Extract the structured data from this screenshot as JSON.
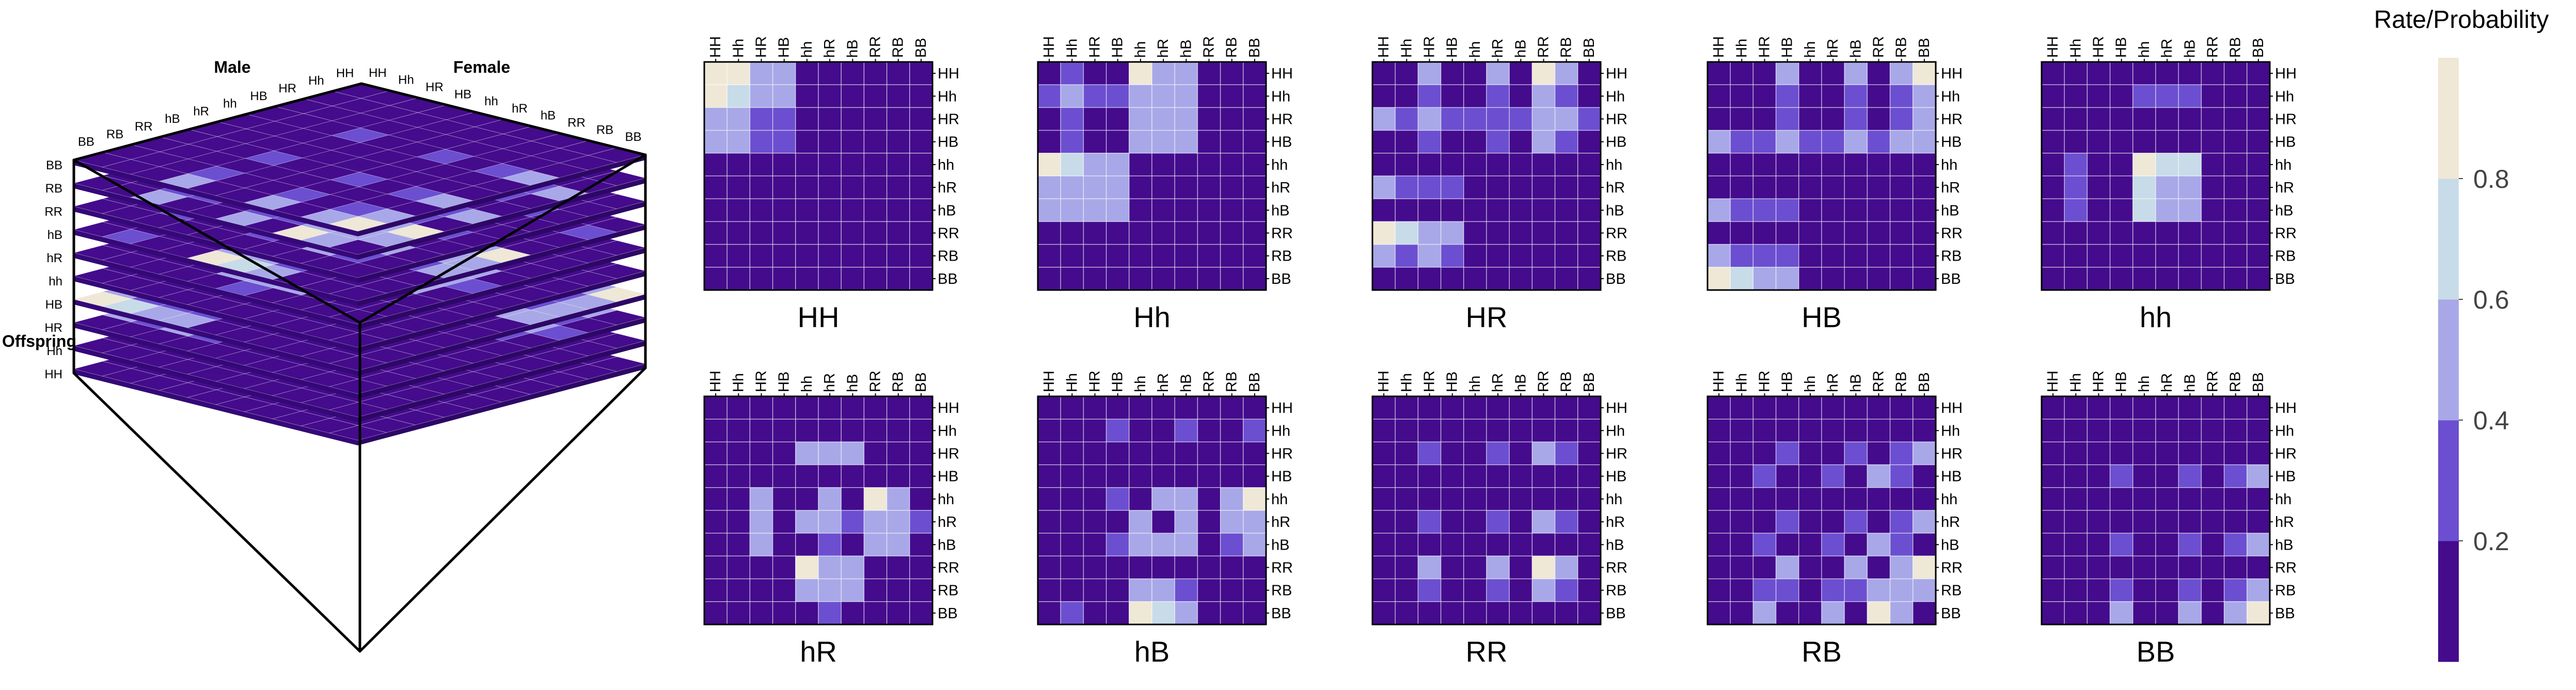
{
  "chart_data": {
    "type": "heatmap",
    "genotypes": [
      "HH",
      "Hh",
      "HR",
      "HB",
      "hh",
      "hR",
      "hB",
      "RR",
      "RB",
      "BB"
    ],
    "palette": [
      "#440b8c",
      "#6b4fd0",
      "#a8a8e8",
      "#c8dbe8",
      "#efe8d6"
    ],
    "grid_color": "#ffffff",
    "colorbar": {
      "title": "Rate/Probability",
      "ticks": [
        0.2,
        0.4,
        0.6,
        0.8
      ],
      "range": [
        0,
        1
      ]
    },
    "cube": {
      "male_label": "Male",
      "female_label": "Female",
      "offspring_label": "Offspring"
    },
    "panels": [
      {
        "title": "HH",
        "values": [
          [
            1,
            1,
            0.5,
            0.5,
            0,
            0,
            0,
            0,
            0,
            0
          ],
          [
            1,
            0.75,
            0.5,
            0.5,
            0,
            0,
            0,
            0,
            0,
            0
          ],
          [
            0.5,
            0.5,
            0.25,
            0.25,
            0,
            0,
            0,
            0,
            0,
            0
          ],
          [
            0.5,
            0.5,
            0.25,
            0.25,
            0,
            0,
            0,
            0,
            0,
            0
          ],
          [
            0,
            0,
            0,
            0,
            0,
            0,
            0,
            0,
            0,
            0
          ],
          [
            0,
            0,
            0,
            0,
            0,
            0,
            0,
            0,
            0,
            0
          ],
          [
            0,
            0,
            0,
            0,
            0,
            0,
            0,
            0,
            0,
            0
          ],
          [
            0,
            0,
            0,
            0,
            0,
            0,
            0,
            0,
            0,
            0
          ],
          [
            0,
            0,
            0,
            0,
            0,
            0,
            0,
            0,
            0,
            0
          ],
          [
            0,
            0,
            0,
            0,
            0,
            0,
            0,
            0,
            0,
            0
          ]
        ]
      },
      {
        "title": "Hh",
        "values": [
          [
            0,
            0.25,
            0.1,
            0.1,
            1,
            0.5,
            0.5,
            0,
            0,
            0
          ],
          [
            0.25,
            0.5,
            0.25,
            0.25,
            0.5,
            0.5,
            0.5,
            0,
            0,
            0
          ],
          [
            0.1,
            0.25,
            0.1,
            0.1,
            0.5,
            0.45,
            0.45,
            0,
            0,
            0
          ],
          [
            0.1,
            0.25,
            0.1,
            0.1,
            0.5,
            0.45,
            0.45,
            0,
            0,
            0
          ],
          [
            1,
            0.75,
            0.5,
            0.5,
            0,
            0,
            0,
            0,
            0,
            0
          ],
          [
            0.5,
            0.5,
            0.45,
            0.45,
            0,
            0,
            0,
            0,
            0,
            0
          ],
          [
            0.5,
            0.5,
            0.45,
            0.45,
            0,
            0,
            0,
            0,
            0,
            0
          ],
          [
            0,
            0,
            0,
            0,
            0,
            0,
            0,
            0,
            0,
            0
          ],
          [
            0,
            0,
            0,
            0,
            0,
            0,
            0,
            0,
            0,
            0
          ],
          [
            0,
            0,
            0,
            0,
            0,
            0,
            0,
            0,
            0,
            0
          ]
        ]
      },
      {
        "title": "HR",
        "values": [
          [
            0,
            0,
            0.5,
            0,
            0,
            0.5,
            0,
            1,
            0.5,
            0
          ],
          [
            0,
            0,
            0.25,
            0,
            0,
            0.25,
            0,
            0.5,
            0.25,
            0
          ],
          [
            0.5,
            0.25,
            0.5,
            0.25,
            0.25,
            0.25,
            0.25,
            0.5,
            0.5,
            0.25
          ],
          [
            0,
            0,
            0.25,
            0,
            0,
            0.25,
            0,
            0.5,
            0.25,
            0
          ],
          [
            0,
            0,
            0,
            0,
            0,
            0,
            0,
            0,
            0,
            0
          ],
          [
            0.5,
            0.25,
            0.25,
            0.25,
            0,
            0,
            0,
            0,
            0,
            0
          ],
          [
            0,
            0,
            0,
            0,
            0,
            0,
            0,
            0,
            0,
            0
          ],
          [
            1,
            0.6,
            0.5,
            0.5,
            0,
            0,
            0,
            0,
            0,
            0
          ],
          [
            0.5,
            0.25,
            0.5,
            0.25,
            0,
            0,
            0,
            0,
            0,
            0
          ],
          [
            0,
            0,
            0,
            0,
            0,
            0,
            0,
            0,
            0,
            0
          ]
        ]
      },
      {
        "title": "HB",
        "values": [
          [
            0,
            0,
            0,
            0.5,
            0,
            0,
            0.5,
            0,
            0.5,
            1
          ],
          [
            0,
            0,
            0,
            0.25,
            0,
            0,
            0.25,
            0,
            0.25,
            0.5
          ],
          [
            0,
            0,
            0,
            0.25,
            0,
            0,
            0.25,
            0,
            0.25,
            0.5
          ],
          [
            0.5,
            0.25,
            0.25,
            0.5,
            0.25,
            0.25,
            0.5,
            0.25,
            0.5,
            0.5
          ],
          [
            0,
            0,
            0,
            0,
            0,
            0,
            0,
            0,
            0,
            0
          ],
          [
            0,
            0,
            0,
            0,
            0,
            0,
            0,
            0,
            0,
            0
          ],
          [
            0.5,
            0.25,
            0.25,
            0.25,
            0,
            0,
            0,
            0,
            0,
            0
          ],
          [
            0,
            0,
            0,
            0,
            0,
            0,
            0,
            0,
            0,
            0
          ],
          [
            0.5,
            0.25,
            0.25,
            0.25,
            0,
            0,
            0,
            0,
            0,
            0
          ],
          [
            1,
            0.6,
            0.5,
            0.5,
            0,
            0,
            0,
            0,
            0,
            0
          ]
        ]
      },
      {
        "title": "hh",
        "values": [
          [
            0,
            0,
            0,
            0,
            0,
            0,
            0,
            0,
            0,
            0
          ],
          [
            0,
            0.1,
            0,
            0,
            0.25,
            0.25,
            0.25,
            0,
            0,
            0
          ],
          [
            0,
            0,
            0,
            0,
            0,
            0,
            0,
            0,
            0,
            0
          ],
          [
            0,
            0,
            0,
            0,
            0,
            0,
            0,
            0,
            0,
            0
          ],
          [
            0,
            0.25,
            0,
            0,
            1,
            0.6,
            0.6,
            0,
            0,
            0
          ],
          [
            0,
            0.25,
            0,
            0,
            0.6,
            0.5,
            0.5,
            0,
            0,
            0
          ],
          [
            0,
            0.25,
            0,
            0,
            0.6,
            0.5,
            0.5,
            0,
            0,
            0
          ],
          [
            0,
            0,
            0,
            0,
            0,
            0,
            0,
            0,
            0,
            0
          ],
          [
            0,
            0,
            0,
            0,
            0,
            0,
            0,
            0,
            0,
            0
          ],
          [
            0,
            0,
            0,
            0,
            0,
            0,
            0,
            0,
            0,
            0
          ]
        ]
      },
      {
        "title": "hR",
        "values": [
          [
            0,
            0,
            0,
            0,
            0,
            0,
            0,
            0,
            0,
            0
          ],
          [
            0,
            0,
            0,
            0,
            0,
            0,
            0,
            0,
            0,
            0
          ],
          [
            0,
            0,
            0,
            0,
            0.5,
            0.4,
            0.4,
            0,
            0,
            0
          ],
          [
            0,
            0,
            0,
            0,
            0,
            0,
            0,
            0,
            0,
            0
          ],
          [
            0,
            0,
            0.5,
            0,
            0,
            0.5,
            0,
            1,
            0.5,
            0
          ],
          [
            0,
            0,
            0.4,
            0,
            0.5,
            0.5,
            0.25,
            0.5,
            0.5,
            0.25
          ],
          [
            0,
            0,
            0.4,
            0,
            0,
            0.25,
            0,
            0.5,
            0.5,
            0
          ],
          [
            0,
            0,
            0,
            0,
            1,
            0.5,
            0.5,
            0,
            0,
            0
          ],
          [
            0,
            0,
            0,
            0,
            0.5,
            0.5,
            0.5,
            0,
            0,
            0
          ],
          [
            0,
            0,
            0,
            0,
            0,
            0.25,
            0,
            0,
            0,
            0
          ]
        ]
      },
      {
        "title": "hB",
        "values": [
          [
            0,
            0,
            0,
            0,
            0,
            0,
            0,
            0,
            0,
            0
          ],
          [
            0,
            0,
            0,
            0.25,
            0,
            0,
            0.25,
            0,
            0,
            0.25
          ],
          [
            0,
            0,
            0,
            0,
            0,
            0,
            0,
            0,
            0,
            0
          ],
          [
            0,
            0,
            0,
            0,
            0,
            0,
            0,
            0,
            0,
            0
          ],
          [
            0,
            0,
            0,
            0.25,
            0,
            0.5,
            0.5,
            0,
            0.5,
            1
          ],
          [
            0,
            0,
            0,
            0,
            0.5,
            0,
            0.5,
            0,
            0.5,
            0.5
          ],
          [
            0,
            0,
            0,
            0.25,
            0.5,
            0.5,
            0.5,
            0,
            0.25,
            0.5
          ],
          [
            0,
            0,
            0,
            0,
            0,
            0,
            0,
            0,
            0,
            0
          ],
          [
            0,
            0,
            0,
            0,
            0.5,
            0.5,
            0.25,
            0,
            0,
            0
          ],
          [
            0,
            0.25,
            0,
            0,
            1,
            0.6,
            0.5,
            0,
            0,
            0
          ]
        ]
      },
      {
        "title": "RR",
        "values": [
          [
            0,
            0,
            0,
            0,
            0,
            0,
            0,
            0,
            0,
            0
          ],
          [
            0,
            0,
            0,
            0,
            0,
            0,
            0,
            0,
            0,
            0
          ],
          [
            0,
            0,
            0.25,
            0,
            0,
            0.25,
            0,
            0.5,
            0.25,
            0
          ],
          [
            0,
            0,
            0,
            0,
            0,
            0,
            0,
            0,
            0,
            0
          ],
          [
            0,
            0,
            0,
            0,
            0,
            0,
            0,
            0,
            0,
            0
          ],
          [
            0,
            0,
            0.25,
            0,
            0,
            0.25,
            0,
            0.5,
            0.25,
            0
          ],
          [
            0,
            0,
            0,
            0,
            0,
            0,
            0,
            0,
            0,
            0
          ],
          [
            0,
            0,
            0.5,
            0,
            0,
            0.5,
            0,
            1,
            0.5,
            0
          ],
          [
            0,
            0,
            0.25,
            0,
            0,
            0.25,
            0,
            0.5,
            0.25,
            0
          ],
          [
            0,
            0,
            0,
            0,
            0,
            0,
            0,
            0,
            0,
            0
          ]
        ]
      },
      {
        "title": "RB",
        "values": [
          [
            0,
            0,
            0,
            0,
            0,
            0,
            0,
            0,
            0,
            0
          ],
          [
            0,
            0,
            0,
            0,
            0,
            0,
            0,
            0,
            0,
            0
          ],
          [
            0,
            0,
            0,
            0.25,
            0,
            0,
            0.25,
            0,
            0.25,
            0.5
          ],
          [
            0,
            0,
            0.25,
            0,
            0,
            0.25,
            0,
            0.5,
            0.25,
            0
          ],
          [
            0,
            0,
            0,
            0,
            0,
            0,
            0,
            0,
            0,
            0
          ],
          [
            0,
            0,
            0,
            0.25,
            0,
            0,
            0.25,
            0,
            0.25,
            0.5
          ],
          [
            0,
            0,
            0.25,
            0,
            0,
            0.25,
            0,
            0.5,
            0.25,
            0
          ],
          [
            0,
            0,
            0,
            0.5,
            0,
            0,
            0.5,
            0,
            0.5,
            1
          ],
          [
            0,
            0,
            0.25,
            0.25,
            0,
            0.25,
            0.25,
            0.5,
            0.5,
            0.5
          ],
          [
            0,
            0,
            0.5,
            0,
            0,
            0.5,
            0,
            1,
            0.5,
            0
          ]
        ]
      },
      {
        "title": "BB",
        "values": [
          [
            0,
            0,
            0,
            0,
            0,
            0,
            0,
            0,
            0,
            0
          ],
          [
            0,
            0,
            0,
            0,
            0,
            0,
            0,
            0,
            0,
            0
          ],
          [
            0,
            0,
            0,
            0,
            0,
            0,
            0,
            0,
            0,
            0
          ],
          [
            0,
            0,
            0,
            0.25,
            0,
            0,
            0.25,
            0,
            0.25,
            0.5
          ],
          [
            0,
            0,
            0,
            0,
            0,
            0,
            0,
            0,
            0,
            0
          ],
          [
            0,
            0,
            0,
            0,
            0,
            0,
            0,
            0,
            0,
            0
          ],
          [
            0,
            0,
            0,
            0.25,
            0,
            0,
            0.25,
            0,
            0.25,
            0.5
          ],
          [
            0,
            0,
            0,
            0,
            0,
            0,
            0,
            0,
            0,
            0
          ],
          [
            0,
            0,
            0,
            0.25,
            0,
            0,
            0.25,
            0,
            0.25,
            0.5
          ],
          [
            0,
            0,
            0,
            0.5,
            0,
            0,
            0.5,
            0,
            0.5,
            1
          ]
        ]
      }
    ]
  }
}
